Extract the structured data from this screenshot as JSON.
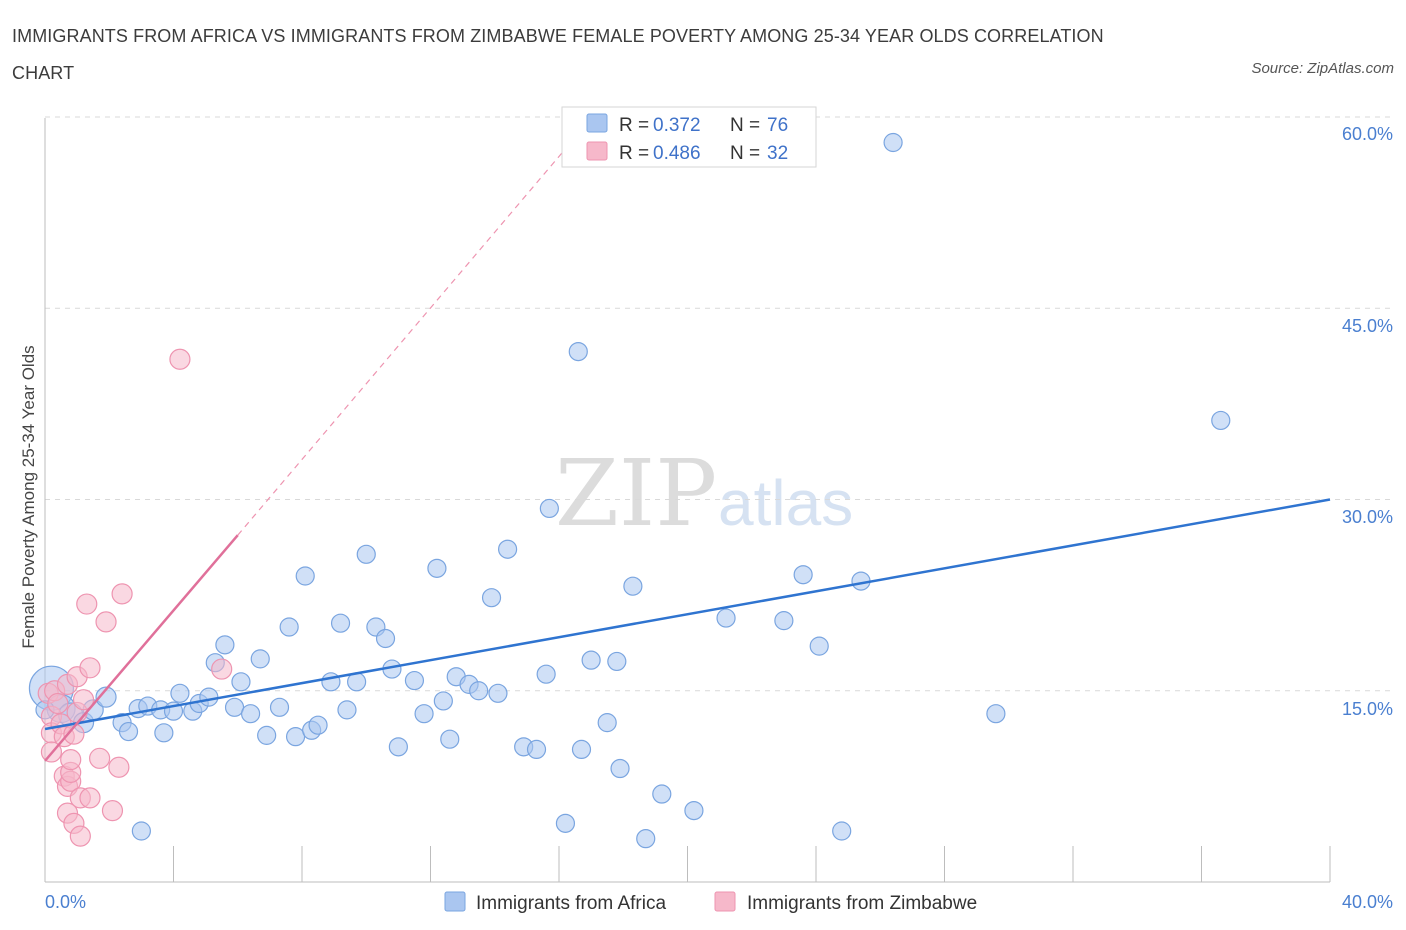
{
  "header": {
    "title": "IMMIGRANTS FROM AFRICA VS IMMIGRANTS FROM ZIMBABWE FEMALE POVERTY AMONG 25-34 YEAR OLDS CORRELATION CHART",
    "source": "Source: ZipAtlas.com"
  },
  "watermark": {
    "zip": "ZIP",
    "atlas": "atlas"
  },
  "legend_top": {
    "r_label": "R =",
    "n_label": "N =",
    "rows": [
      {
        "r": "0.372",
        "n": "76"
      },
      {
        "r": "0.486",
        "n": "32"
      }
    ]
  },
  "axis_labels": {
    "y_title": "Female Poverty Among 25-34 Year Olds",
    "x_min": "0.0%",
    "x_max": "40.0%",
    "y_ticks": [
      "15.0%",
      "30.0%",
      "45.0%",
      "60.0%"
    ]
  },
  "colors": {
    "africa_fill": "#aac6f0",
    "africa_stroke": "#7aa5e0",
    "africa_line": "#2f74d0",
    "zimbabwe_fill": "#f6b8ca",
    "zimbabwe_stroke": "#ee94b0",
    "zimbabwe_line": "#e0709a",
    "grid": "#d9d9d9",
    "tick_text": "#4a7fd0"
  },
  "chart_data": {
    "type": "scatter",
    "x_range": [
      0,
      40
    ],
    "y_range": [
      0,
      60
    ],
    "x_unit": "%",
    "y_unit": "%",
    "y_axis_label": "Female Poverty Among 25-34 Year Olds",
    "y_ticks": [
      15,
      30,
      45,
      60
    ],
    "x_tick_labels": [
      "0.0%",
      "40.0%"
    ],
    "grid": "horizontal dashed",
    "series": [
      {
        "name": "Immigrants from Africa",
        "r": 0.372,
        "n": 76,
        "trend": {
          "x0": 0,
          "y0": 12.0,
          "x1": 40,
          "y1": 30.0
        },
        "points": [
          [
            0.2,
            15.2,
            22
          ],
          [
            0.5,
            13.6,
            14
          ],
          [
            0.8,
            13.1,
            12
          ],
          [
            1.2,
            12.5,
            10
          ],
          [
            1.5,
            13.5,
            10
          ],
          [
            1.9,
            14.5,
            10
          ],
          [
            2.4,
            12.5,
            9
          ],
          [
            2.6,
            11.8,
            9
          ],
          [
            2.9,
            13.6,
            9
          ],
          [
            3.2,
            13.8,
            9
          ],
          [
            3.6,
            13.5,
            9
          ],
          [
            3.7,
            11.7,
            9
          ],
          [
            4.0,
            13.4,
            9
          ],
          [
            4.2,
            14.8,
            9
          ],
          [
            4.6,
            13.4,
            9
          ],
          [
            4.8,
            14.0,
            9
          ],
          [
            5.1,
            14.5,
            9
          ],
          [
            5.3,
            17.2,
            9
          ],
          [
            5.6,
            18.6,
            9
          ],
          [
            5.9,
            13.7,
            9
          ],
          [
            6.1,
            15.7,
            9
          ],
          [
            6.4,
            13.2,
            9
          ],
          [
            6.7,
            17.5,
            9
          ],
          [
            6.9,
            11.5,
            9
          ],
          [
            7.3,
            13.7,
            9
          ],
          [
            7.6,
            20.0,
            9
          ],
          [
            7.8,
            11.4,
            9
          ],
          [
            8.1,
            24.0,
            9
          ],
          [
            8.3,
            11.9,
            9
          ],
          [
            8.5,
            12.3,
            9
          ],
          [
            8.9,
            15.7,
            9
          ],
          [
            9.2,
            20.3,
            9
          ],
          [
            9.4,
            13.5,
            9
          ],
          [
            9.7,
            15.7,
            9
          ],
          [
            10.0,
            25.7,
            9
          ],
          [
            10.3,
            20.0,
            9
          ],
          [
            10.6,
            19.1,
            9
          ],
          [
            10.8,
            16.7,
            9
          ],
          [
            11.0,
            10.6,
            9
          ],
          [
            11.5,
            15.8,
            9
          ],
          [
            11.8,
            13.2,
            9
          ],
          [
            12.2,
            24.6,
            9
          ],
          [
            12.4,
            14.2,
            9
          ],
          [
            12.6,
            11.2,
            9
          ],
          [
            12.8,
            16.1,
            9
          ],
          [
            13.2,
            15.5,
            9
          ],
          [
            13.5,
            15.0,
            9
          ],
          [
            13.9,
            22.3,
            9
          ],
          [
            14.1,
            14.8,
            9
          ],
          [
            14.4,
            26.1,
            9
          ],
          [
            14.9,
            10.6,
            9
          ],
          [
            15.3,
            10.4,
            9
          ],
          [
            15.6,
            16.3,
            9
          ],
          [
            15.7,
            29.3,
            9
          ],
          [
            16.2,
            4.6,
            9
          ],
          [
            16.7,
            10.4,
            9
          ],
          [
            17.0,
            17.4,
            9
          ],
          [
            16.6,
            41.6,
            9
          ],
          [
            17.5,
            12.5,
            9
          ],
          [
            17.8,
            17.3,
            9
          ],
          [
            17.9,
            8.9,
            9
          ],
          [
            18.3,
            23.2,
            9
          ],
          [
            18.7,
            3.4,
            9
          ],
          [
            19.2,
            6.9,
            9
          ],
          [
            20.2,
            5.6,
            9
          ],
          [
            21.2,
            20.7,
            9
          ],
          [
            23.0,
            20.5,
            9
          ],
          [
            23.6,
            24.1,
            9
          ],
          [
            24.1,
            18.5,
            9
          ],
          [
            24.8,
            4.0,
            9
          ],
          [
            25.4,
            23.6,
            9
          ],
          [
            26.4,
            58.0,
            9
          ],
          [
            29.6,
            13.2,
            9
          ],
          [
            36.6,
            36.2,
            9
          ],
          [
            0.0,
            13.5,
            9
          ],
          [
            3.0,
            4.0,
            9
          ]
        ]
      },
      {
        "name": "Immigrants from Zimbabwe",
        "r": 0.486,
        "n": 32,
        "trend": {
          "x0": 0,
          "y0": 9.5,
          "x1": 6.0,
          "y1": 27.2
        },
        "trend_extension": {
          "x0": 6.0,
          "y0": 27.2,
          "x1": 16.2,
          "y1": 57.5
        },
        "points": [
          [
            0.1,
            14.8,
            10
          ],
          [
            0.2,
            13.0,
            10
          ],
          [
            0.2,
            11.7,
            10
          ],
          [
            0.2,
            10.2,
            10
          ],
          [
            0.3,
            15.0,
            10
          ],
          [
            0.4,
            14.0,
            10
          ],
          [
            0.5,
            12.4,
            10
          ],
          [
            0.6,
            11.4,
            10
          ],
          [
            0.6,
            8.3,
            10
          ],
          [
            0.7,
            7.5,
            10
          ],
          [
            0.7,
            15.5,
            10
          ],
          [
            0.7,
            5.4,
            10
          ],
          [
            0.8,
            7.9,
            10
          ],
          [
            0.8,
            8.6,
            10
          ],
          [
            0.8,
            9.6,
            10
          ],
          [
            0.9,
            4.6,
            10
          ],
          [
            0.9,
            11.6,
            10
          ],
          [
            1.0,
            13.3,
            10
          ],
          [
            1.0,
            16.1,
            10
          ],
          [
            1.1,
            6.6,
            10
          ],
          [
            1.1,
            3.6,
            10
          ],
          [
            1.2,
            14.3,
            10
          ],
          [
            1.3,
            21.8,
            10
          ],
          [
            1.4,
            16.8,
            10
          ],
          [
            1.4,
            6.6,
            10
          ],
          [
            1.7,
            9.7,
            10
          ],
          [
            1.9,
            20.4,
            10
          ],
          [
            2.1,
            5.6,
            10
          ],
          [
            2.3,
            9.0,
            10
          ],
          [
            2.4,
            22.6,
            10
          ],
          [
            4.2,
            41.0,
            10
          ],
          [
            5.5,
            16.7,
            10
          ]
        ]
      }
    ]
  },
  "legend_bottom": {
    "items": [
      {
        "label": "Immigrants from Africa"
      },
      {
        "label": "Immigrants from Zimbabwe"
      }
    ]
  }
}
